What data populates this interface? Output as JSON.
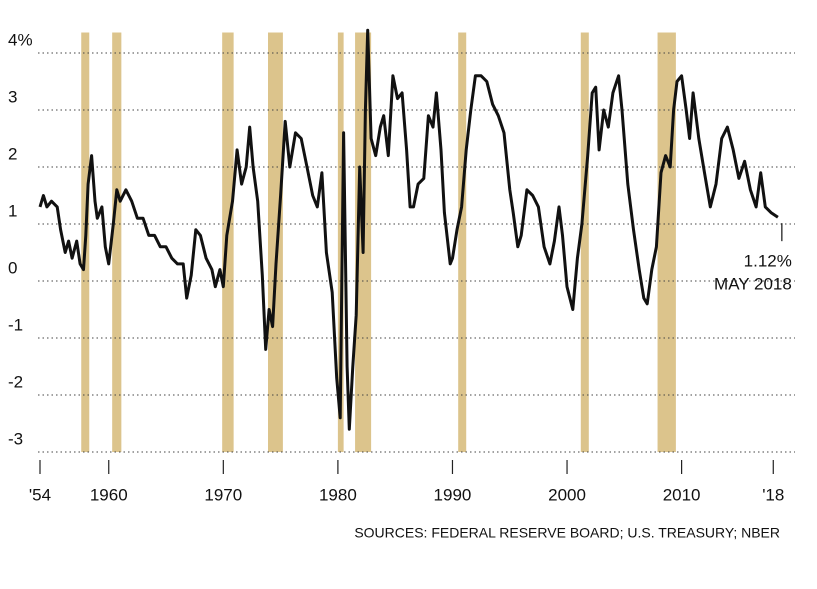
{
  "chart_data": {
    "type": "line",
    "xlim": [
      1954,
      2018.5
    ],
    "ylim": [
      -3,
      4.5
    ],
    "yticks": [
      {
        "value": 4,
        "label": "4%"
      },
      3,
      2,
      1,
      0,
      -1,
      -2,
      -3
    ],
    "xticks": [
      {
        "value": 1954,
        "label": "'54"
      },
      1960,
      1970,
      1980,
      1990,
      2000,
      2010,
      {
        "value": 2018,
        "label": "'18"
      }
    ],
    "grid": true,
    "recession_color": "#dcc48c",
    "recessions": [
      [
        1957.6,
        1958.3
      ],
      [
        1960.3,
        1961.1
      ],
      [
        1969.9,
        1970.9
      ],
      [
        1973.9,
        1975.2
      ],
      [
        1980.0,
        1980.5
      ],
      [
        1981.5,
        1982.9
      ],
      [
        1990.5,
        1991.2
      ],
      [
        2001.2,
        2001.9
      ],
      [
        2007.9,
        2009.5
      ]
    ],
    "x": [
      1954.0,
      1954.3,
      1954.6,
      1955.0,
      1955.5,
      1955.8,
      1956.2,
      1956.5,
      1956.8,
      1957.2,
      1957.5,
      1957.8,
      1958.0,
      1958.2,
      1958.5,
      1958.8,
      1959.0,
      1959.4,
      1959.7,
      1960.0,
      1960.4,
      1960.7,
      1961.0,
      1961.5,
      1962.0,
      1962.5,
      1963.0,
      1963.5,
      1964.0,
      1964.5,
      1965.0,
      1965.5,
      1966.0,
      1966.5,
      1966.8,
      1967.2,
      1967.6,
      1968.0,
      1968.5,
      1969.0,
      1969.3,
      1969.7,
      1970.0,
      1970.3,
      1970.8,
      1971.2,
      1971.6,
      1972.0,
      1972.3,
      1972.6,
      1973.0,
      1973.4,
      1973.7,
      1974.0,
      1974.3,
      1974.6,
      1975.0,
      1975.4,
      1975.8,
      1976.3,
      1976.8,
      1977.3,
      1977.8,
      1978.2,
      1978.6,
      1979.0,
      1979.5,
      1979.9,
      1980.2,
      1980.5,
      1980.8,
      1981.0,
      1981.3,
      1981.6,
      1981.9,
      1982.2,
      1982.4,
      1982.6,
      1982.9,
      1983.3,
      1983.7,
      1984.0,
      1984.4,
      1984.8,
      1985.2,
      1985.6,
      1986.0,
      1986.3,
      1986.6,
      1987.0,
      1987.5,
      1987.9,
      1988.3,
      1988.6,
      1989.0,
      1989.3,
      1989.8,
      1990.0,
      1990.4,
      1990.8,
      1991.2,
      1991.6,
      1992.0,
      1992.5,
      1993.0,
      1993.5,
      1994.0,
      1994.5,
      1995.0,
      1995.3,
      1995.7,
      1996.0,
      1996.5,
      1997.0,
      1997.5,
      1998.0,
      1998.5,
      1998.9,
      1999.3,
      1999.6,
      2000.0,
      2000.5,
      2000.9,
      2001.3,
      2001.8,
      2002.2,
      2002.5,
      2002.8,
      2003.2,
      2003.6,
      2004.0,
      2004.5,
      2004.8,
      2005.3,
      2005.8,
      2006.3,
      2006.7,
      2007.0,
      2007.4,
      2007.8,
      2008.2,
      2008.6,
      2009.0,
      2009.3,
      2009.6,
      2010.0,
      2010.4,
      2010.7,
      2011.0,
      2011.5,
      2012.0,
      2012.5,
      2013.0,
      2013.5,
      2014.0,
      2014.5,
      2015.0,
      2015.5,
      2016.0,
      2016.5,
      2016.9,
      2017.3,
      2017.8,
      2018.4
    ],
    "series": [
      {
        "color": "#111111",
        "values": [
          1.3,
          1.5,
          1.3,
          1.4,
          1.3,
          0.9,
          0.5,
          0.7,
          0.4,
          0.7,
          0.3,
          0.2,
          0.8,
          1.7,
          2.2,
          1.4,
          1.1,
          1.3,
          0.6,
          0.3,
          1.0,
          1.6,
          1.4,
          1.6,
          1.4,
          1.1,
          1.1,
          0.8,
          0.8,
          0.6,
          0.6,
          0.4,
          0.3,
          0.3,
          -0.3,
          0.1,
          0.9,
          0.8,
          0.4,
          0.2,
          -0.1,
          0.2,
          -0.1,
          0.8,
          1.4,
          2.3,
          1.7,
          2.0,
          2.7,
          2.0,
          1.4,
          0.1,
          -1.2,
          -0.5,
          -0.8,
          0.3,
          1.5,
          2.8,
          2.0,
          2.6,
          2.5,
          2.0,
          1.5,
          1.3,
          1.9,
          0.5,
          -0.2,
          -1.7,
          -2.4,
          2.6,
          -1.5,
          -2.6,
          -1.5,
          -0.6,
          2.0,
          0.5,
          3.0,
          4.4,
          2.5,
          2.2,
          2.7,
          2.9,
          2.2,
          3.6,
          3.2,
          3.3,
          2.3,
          1.3,
          1.3,
          1.7,
          1.8,
          2.9,
          2.7,
          3.3,
          2.3,
          1.2,
          0.3,
          0.4,
          0.9,
          1.3,
          2.3,
          3.0,
          3.6,
          3.6,
          3.5,
          3.1,
          2.9,
          2.6,
          1.6,
          1.2,
          0.6,
          0.8,
          1.6,
          1.5,
          1.3,
          0.6,
          0.3,
          0.7,
          1.3,
          0.8,
          -0.1,
          -0.5,
          0.4,
          1.0,
          2.2,
          3.3,
          3.4,
          2.3,
          3.0,
          2.7,
          3.3,
          3.6,
          3.0,
          1.7,
          0.9,
          0.2,
          -0.3,
          -0.4,
          0.2,
          0.6,
          1.9,
          2.2,
          2.0,
          3.0,
          3.5,
          3.6,
          3.0,
          2.5,
          3.3,
          2.5,
          1.9,
          1.3,
          1.7,
          2.5,
          2.7,
          2.3,
          1.8,
          2.1,
          1.6,
          1.3,
          1.9,
          1.3,
          1.2,
          1.12
        ]
      }
    ],
    "annotation": [
      "1.12%",
      "MAY 2018"
    ],
    "source": "SOURCES: FEDERAL RESERVE BOARD; U.S. TREASURY; NBER"
  }
}
